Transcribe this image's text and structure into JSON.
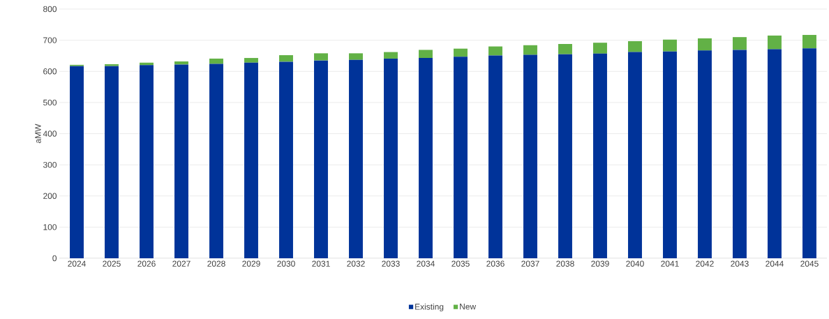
{
  "chart_data": {
    "type": "bar",
    "stacked": true,
    "ylabel": "aMW",
    "categories": [
      "2024",
      "2025",
      "2026",
      "2027",
      "2028",
      "2029",
      "2030",
      "2031",
      "2032",
      "2033",
      "2034",
      "2035",
      "2036",
      "2037",
      "2038",
      "2039",
      "2040",
      "2041",
      "2042",
      "2043",
      "2044",
      "2045"
    ],
    "series": [
      {
        "name": "Existing",
        "color": "#003399",
        "values": [
          617,
          617,
          620,
          622,
          624,
          628,
          631,
          635,
          637,
          641,
          643,
          647,
          651,
          653,
          655,
          657,
          662,
          664,
          667,
          669,
          671,
          674
        ]
      },
      {
        "name": "New",
        "color": "#62b146",
        "values": [
          4,
          6,
          8,
          10,
          17,
          15,
          21,
          23,
          21,
          21,
          26,
          26,
          29,
          31,
          33,
          35,
          35,
          38,
          39,
          41,
          44,
          43
        ]
      }
    ],
    "ylim": [
      0,
      800
    ],
    "yticks": [
      0,
      100,
      200,
      300,
      400,
      500,
      600,
      700,
      800
    ],
    "grid": "y",
    "legend": "bottom"
  }
}
